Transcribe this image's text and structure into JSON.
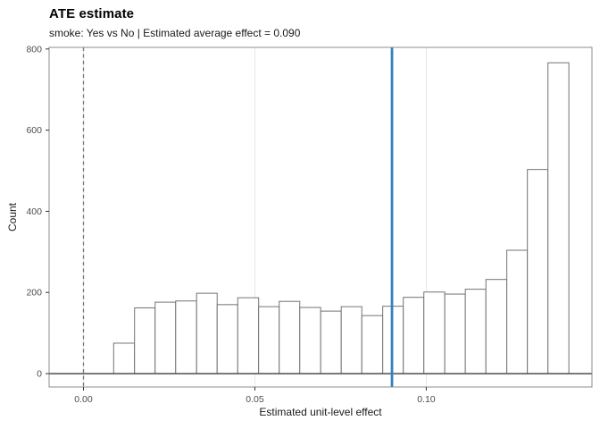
{
  "chart_data": {
    "type": "bar",
    "subtype": "histogram",
    "title": "ATE estimate",
    "subtitle": "smoke: Yes vs No | Estimated average effect = 0.090",
    "xlabel": "Estimated unit-level effect",
    "ylabel": "Count",
    "x_ticks": [
      {
        "value": 0.0,
        "label": "0.00"
      },
      {
        "value": 0.05,
        "label": "0.05"
      },
      {
        "value": 0.1,
        "label": "0.10"
      }
    ],
    "y_ticks": [
      {
        "value": 0,
        "label": "0"
      },
      {
        "value": 200,
        "label": "200"
      },
      {
        "value": 400,
        "label": "400"
      },
      {
        "value": 600,
        "label": "600"
      },
      {
        "value": 800,
        "label": "800"
      }
    ],
    "bin_edges": [
      0.0088,
      0.0149,
      0.0209,
      0.0269,
      0.033,
      0.039,
      0.045,
      0.0511,
      0.0571,
      0.0631,
      0.0692,
      0.0752,
      0.0812,
      0.0873,
      0.0933,
      0.0993,
      0.1054,
      0.1114,
      0.1174,
      0.1235,
      0.1295,
      0.1355,
      0.1416
    ],
    "counts": [
      75,
      162,
      176,
      179,
      198,
      170,
      187,
      165,
      178,
      163,
      154,
      165,
      143,
      166,
      188,
      201,
      196,
      208,
      232,
      304,
      503,
      766
    ],
    "vlines": [
      {
        "name": "zero-reference-line",
        "value": 0.0,
        "style": "dashed",
        "color": "#777777",
        "width": 1.3
      },
      {
        "name": "ate-estimate-line",
        "value": 0.09,
        "style": "solid",
        "color": "#3182bd",
        "width": 2.8
      }
    ],
    "hline": {
      "value": 0,
      "color": "#5a5a5a",
      "width": 1.6
    },
    "bar_fill": "#ffffff",
    "bar_stroke": "#737373",
    "panel_border_color": "#8c8c8c",
    "grid": {
      "vertical_major": [
        0.0,
        0.05,
        0.1
      ],
      "color": "#e7e7e7",
      "horizontal": "off"
    },
    "xlim": [
      -0.01003,
      0.14834
    ],
    "ylim": [
      -33,
      804
    ],
    "legend": "none"
  }
}
